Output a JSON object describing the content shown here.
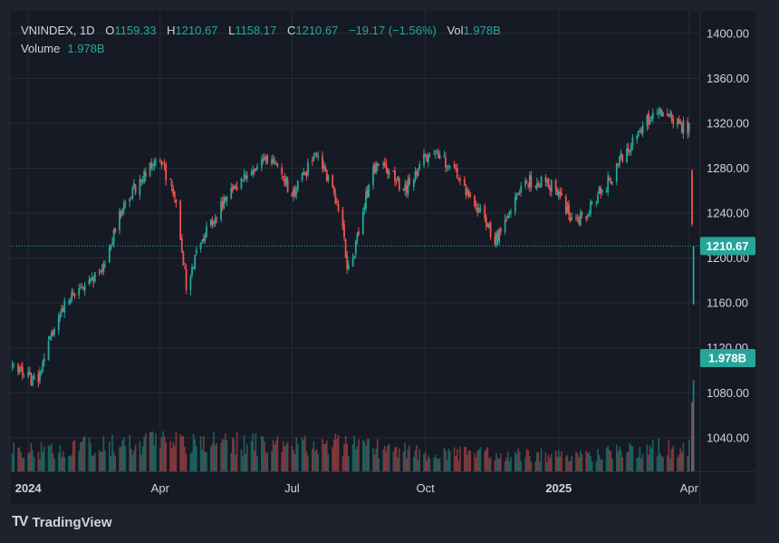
{
  "legend": {
    "symbol": "VNINDEX",
    "interval": "1D",
    "open_label": "O",
    "open": "1159.33",
    "high_label": "H",
    "high": "1210.67",
    "low_label": "L",
    "low": "1158.17",
    "close_label": "C",
    "close": "1210.67",
    "change": "−19.17 (−1.56%)",
    "vol_label": "Vol",
    "vol": "1.978B",
    "volume_label": "Volume",
    "volume_value": "1.978B"
  },
  "brand": {
    "name": "TradingView"
  },
  "colors": {
    "background": "#161a25",
    "frame": "#1e222d",
    "grid": "#262b38",
    "text": "#d1d4dc",
    "up": "#26a69a",
    "down": "#ef5350"
  },
  "chart_data": {
    "type": "candlestick",
    "symbol": "VNINDEX",
    "interval": "1D",
    "ylim": [
      1010,
      1420
    ],
    "y_ticks": [
      "1400.00",
      "1360.00",
      "1320.00",
      "1280.00",
      "1240.00",
      "1200.00",
      "1160.00",
      "1120.00",
      "1080.00",
      "1040.00"
    ],
    "x_ticks": [
      {
        "label": "2024",
        "date": "2024-01-01",
        "bold": true
      },
      {
        "label": "Apr",
        "date": "2024-04-01",
        "bold": false
      },
      {
        "label": "Jul",
        "date": "2024-07-01",
        "bold": false
      },
      {
        "label": "Oct",
        "date": "2024-10-01",
        "bold": false
      },
      {
        "label": "2025",
        "date": "2025-01-01",
        "bold": true
      },
      {
        "label": "Apr",
        "date": "2025-04-01",
        "bold": false
      }
    ],
    "xlim": [
      "2023-12-20",
      "2025-04-08"
    ],
    "price_path": [
      [
        "2023-12-21",
        1105
      ],
      [
        "2023-12-28",
        1098
      ],
      [
        "2024-01-03",
        1090
      ],
      [
        "2024-01-08",
        1095
      ],
      [
        "2024-01-15",
        1125
      ],
      [
        "2024-01-22",
        1150
      ],
      [
        "2024-01-29",
        1165
      ],
      [
        "2024-02-05",
        1172
      ],
      [
        "2024-02-19",
        1185
      ],
      [
        "2024-02-26",
        1205
      ],
      [
        "2024-03-04",
        1240
      ],
      [
        "2024-03-11",
        1255
      ],
      [
        "2024-03-18",
        1270
      ],
      [
        "2024-03-25",
        1282
      ],
      [
        "2024-04-01",
        1288
      ],
      [
        "2024-04-08",
        1265
      ],
      [
        "2024-04-11",
        1258
      ],
      [
        "2024-04-15",
        1215
      ],
      [
        "2024-04-19",
        1175
      ],
      [
        "2024-04-24",
        1195
      ],
      [
        "2024-05-03",
        1225
      ],
      [
        "2024-05-13",
        1248
      ],
      [
        "2024-05-23",
        1265
      ],
      [
        "2024-06-03",
        1280
      ],
      [
        "2024-06-10",
        1285
      ],
      [
        "2024-06-17",
        1292
      ],
      [
        "2024-06-24",
        1275
      ],
      [
        "2024-07-01",
        1255
      ],
      [
        "2024-07-08",
        1270
      ],
      [
        "2024-07-15",
        1290
      ],
      [
        "2024-07-22",
        1282
      ],
      [
        "2024-07-29",
        1262
      ],
      [
        "2024-08-05",
        1225
      ],
      [
        "2024-08-08",
        1195
      ],
      [
        "2024-08-12",
        1200
      ],
      [
        "2024-08-19",
        1245
      ],
      [
        "2024-08-26",
        1280
      ],
      [
        "2024-09-03",
        1285
      ],
      [
        "2024-09-10",
        1270
      ],
      [
        "2024-09-17",
        1260
      ],
      [
        "2024-09-24",
        1275
      ],
      [
        "2024-10-01",
        1290
      ],
      [
        "2024-10-07",
        1295
      ],
      [
        "2024-10-14",
        1285
      ],
      [
        "2024-10-21",
        1275
      ],
      [
        "2024-10-28",
        1262
      ],
      [
        "2024-11-04",
        1250
      ],
      [
        "2024-11-11",
        1235
      ],
      [
        "2024-11-18",
        1215
      ],
      [
        "2024-11-25",
        1235
      ],
      [
        "2024-12-02",
        1255
      ],
      [
        "2024-12-09",
        1270
      ],
      [
        "2024-12-16",
        1265
      ],
      [
        "2024-12-23",
        1270
      ],
      [
        "2024-12-30",
        1260
      ],
      [
        "2025-01-06",
        1245
      ],
      [
        "2025-01-13",
        1230
      ],
      [
        "2025-01-20",
        1240
      ],
      [
        "2025-01-27",
        1255
      ],
      [
        "2025-02-03",
        1265
      ],
      [
        "2025-02-10",
        1280
      ],
      [
        "2025-02-17",
        1298
      ],
      [
        "2025-02-24",
        1310
      ],
      [
        "2025-03-03",
        1322
      ],
      [
        "2025-03-10",
        1330
      ],
      [
        "2025-03-17",
        1325
      ],
      [
        "2025-03-24",
        1320
      ],
      [
        "2025-03-31",
        1315
      ],
      [
        "2025-04-01",
        1318
      ]
    ],
    "final_candles": [
      {
        "date": "2025-04-03",
        "open": 1278,
        "high": 1279,
        "low": 1228,
        "close": 1230
      },
      {
        "date": "2025-04-04",
        "open": 1159.33,
        "high": 1210.67,
        "low": 1158.17,
        "close": 1210.67
      }
    ],
    "volume_ylim": [
      0,
      4.2
    ],
    "volume_path": [
      [
        "2023-12-21",
        0.75
      ],
      [
        "2024-03-01",
        0.95
      ],
      [
        "2024-04-15",
        1.05
      ],
      [
        "2024-06-15",
        0.95
      ],
      [
        "2024-08-10",
        0.95
      ],
      [
        "2024-10-01",
        0.65
      ],
      [
        "2024-12-01",
        0.6
      ],
      [
        "2025-01-20",
        0.55
      ],
      [
        "2025-03-01",
        0.85
      ],
      [
        "2025-04-01",
        0.8
      ]
    ],
    "last_price_label": "1210.67",
    "last_volume_label": "1.978B"
  }
}
